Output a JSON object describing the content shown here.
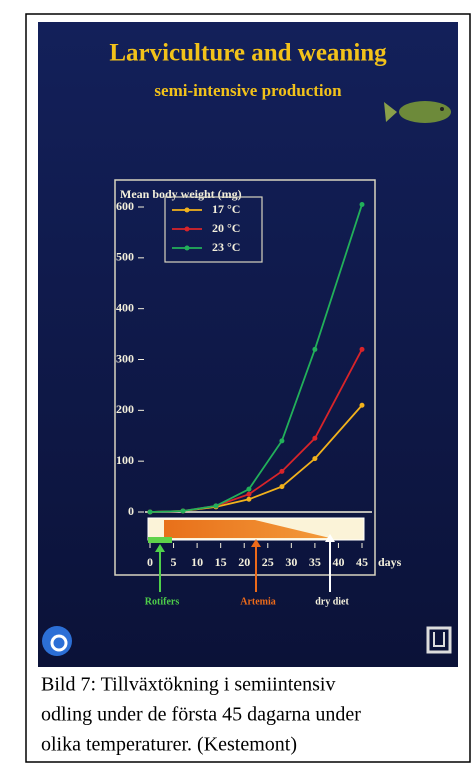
{
  "chart_data": {
    "type": "line",
    "title": "Larviculture and weaning",
    "subtitle": "semi-intensive production",
    "y_label": "Mean body weight (mg)",
    "x_label": "days",
    "x": [
      0,
      7,
      14,
      21,
      28,
      35,
      45
    ],
    "series": [
      {
        "name": "17 °C",
        "color": "#f2b21c",
        "values": [
          0,
          2,
          10,
          25,
          50,
          105,
          210
        ]
      },
      {
        "name": "20 °C",
        "color": "#d8242a",
        "values": [
          0,
          2,
          12,
          35,
          80,
          145,
          320
        ]
      },
      {
        "name": "23 °C",
        "color": "#22b05a",
        "values": [
          0,
          2,
          12,
          45,
          140,
          320,
          605
        ]
      }
    ],
    "xlim": [
      0,
      45
    ],
    "ylim": [
      0,
      600
    ],
    "xticks": [
      0,
      5,
      10,
      15,
      20,
      25,
      30,
      35,
      40,
      45
    ],
    "yticks": [
      0,
      100,
      200,
      300,
      400,
      500,
      600
    ],
    "annotations": [
      "Rotifers",
      "Artemia",
      "dry diet"
    ]
  },
  "caption": [
    "Bild 7: Tillväxtökning i semiintensiv",
    "odling under de första 45 dagarna under",
    "olika temperaturer. (Kestemont)"
  ]
}
